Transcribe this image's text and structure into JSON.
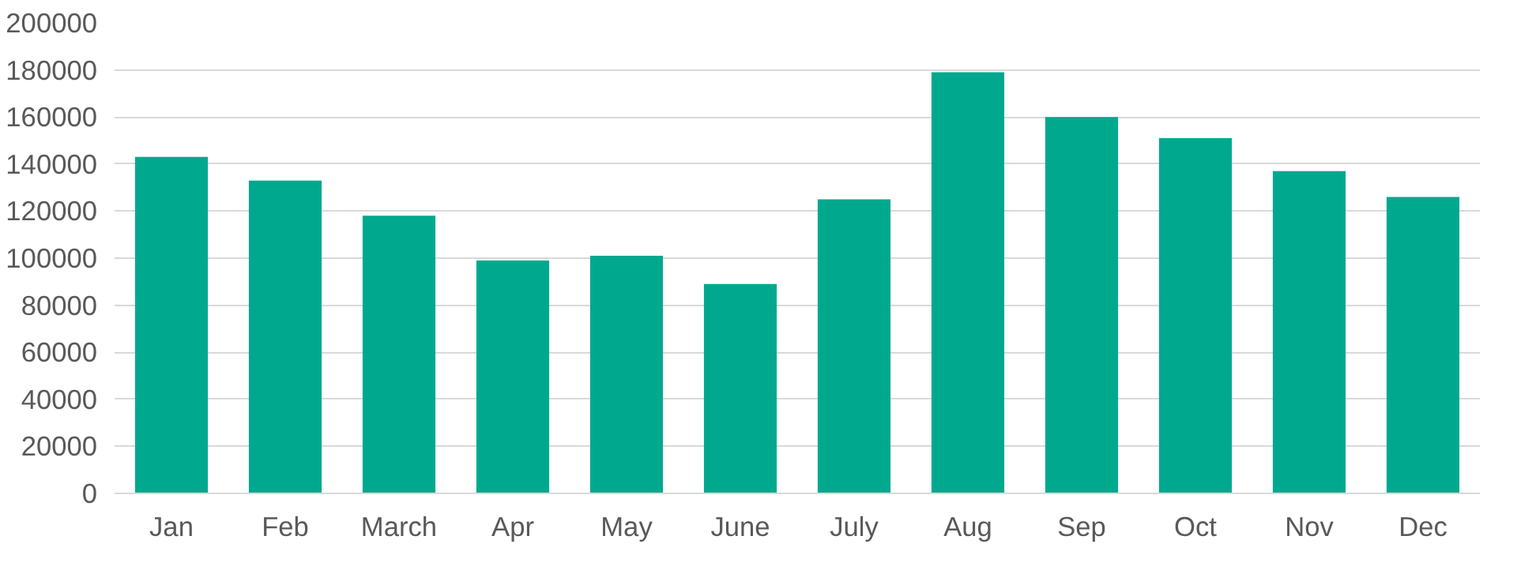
{
  "chart_data": {
    "type": "bar",
    "categories": [
      "Jan",
      "Feb",
      "March",
      "Apr",
      "May",
      "June",
      "July",
      "Aug",
      "Sep",
      "Oct",
      "Nov",
      "Dec"
    ],
    "values": [
      143000,
      133000,
      118000,
      99000,
      101000,
      89000,
      125000,
      179000,
      160000,
      151000,
      137000,
      126000
    ],
    "color": "#00a98e",
    "ylim": [
      0,
      200000
    ],
    "yticks": [
      0,
      20000,
      40000,
      60000,
      80000,
      100000,
      120000,
      140000,
      160000,
      180000,
      200000
    ],
    "grid": "y"
  }
}
